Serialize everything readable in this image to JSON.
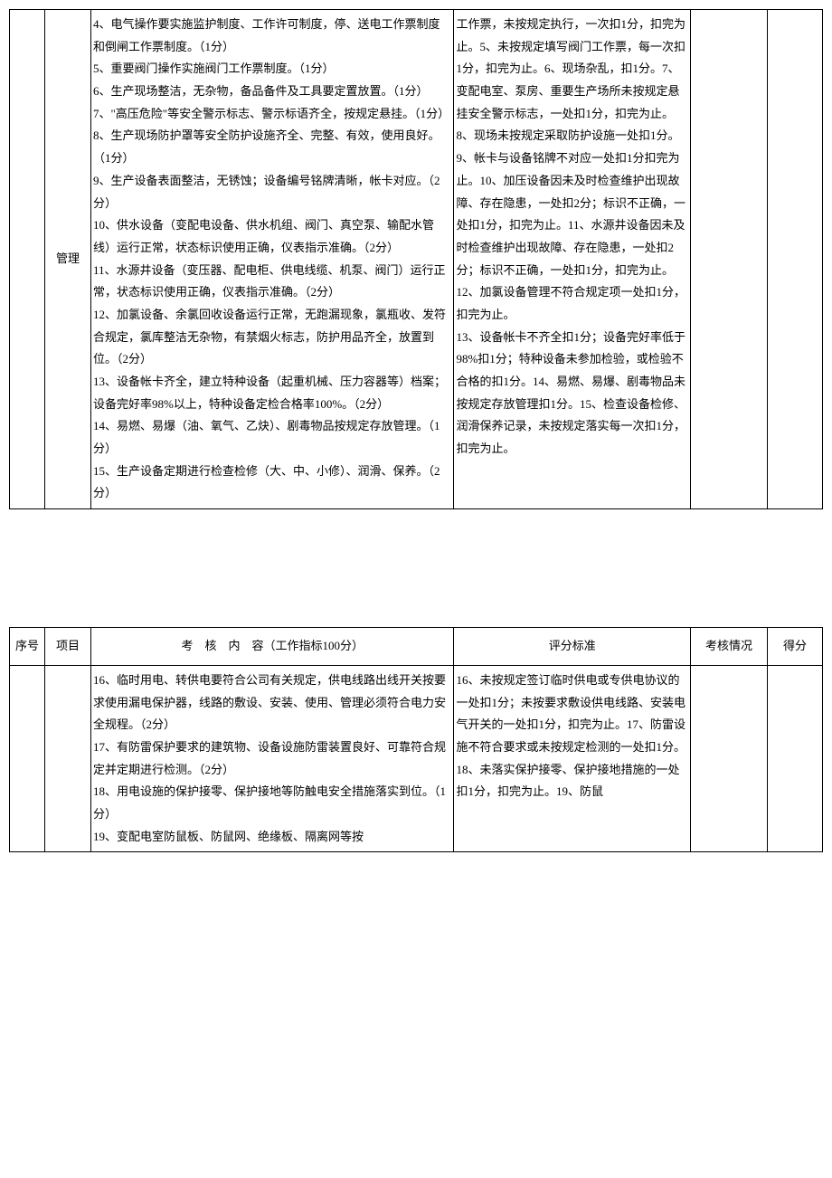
{
  "table1": {
    "row": {
      "project": "管理",
      "content": "4、电气操作要实施监护制度、工作许可制度，停、送电工作票制度和倒闸工作票制度。（1分）\n5、重要阀门操作实施阀门工作票制度。（1分）\n6、生产现场整洁，无杂物，备品备件及工具要定置放置。（1分）\n7、\"高压危险\"等安全警示标志、警示标语齐全，按规定悬挂。（1分）\n8、生产现场防护罩等安全防护设施齐全、完整、有效，使用良好。（1分）\n9、生产设备表面整洁，无锈蚀；设备编号铭牌清晰，帐卡对应。（2分）\n10、供水设备（变配电设备、供水机组、阀门、真空泵、输配水管线）运行正常，状态标识使用正确，仪表指示准确。（2分）\n11、水源井设备（变压器、配电柜、供电线缆、机泵、阀门）运行正常，状态标识使用正确，仪表指示准确。（2分）\n12、加氯设备、余氯回收设备运行正常，无跑漏现象，氯瓶收、发符合规定，氯库整洁无杂物，有禁烟火标志，防护用品齐全，放置到位。（2分）\n13、设备帐卡齐全，建立特种设备（起重机械、压力容器等）档案；设备完好率98%以上，特种设备定检合格率100%。（2分）\n14、易燃、易爆（油、氧气、乙炔）、剧毒物品按规定存放管理。（1分）\n15、生产设备定期进行检查检修（大、中、小修）、润滑、保养。（2分）",
      "criteria": "工作票，未按规定执行，一次扣1分，扣完为止。5、未按规定填写阀门工作票，每一次扣1分，扣完为止。6、现场杂乱，扣1分。7、变配电室、泵房、重要生产场所未按规定悬挂安全警示标志，一处扣1分，扣完为止。8、现场未按规定采取防护设施一处扣1分。9、帐卡与设备铭牌不对应一处扣1分扣完为止。10、加压设备因未及时检查维护出现故障、存在隐患，一处扣2分；标识不正确，一处扣1分，扣完为止。11、水源井设备因未及时检查维护出现故障、存在隐患，一处扣2分；标识不正确，一处扣1分，扣完为止。12、加氯设备管理不符合规定项一处扣1分，扣完为止。\n13、设备帐卡不齐全扣1分；设备完好率低于98%扣1分；特种设备未参加检验，或检验不合格的扣1分。14、易燃、易爆、剧毒物品未按规定存放管理扣1分。15、检查设备检修、润滑保养记录，未按规定落实每一次扣1分，扣完为止。"
    }
  },
  "table2": {
    "headers": {
      "seq": "序号",
      "project": "项目",
      "content_prefix": "考　核　内　容",
      "content_suffix": "（工作指标100分）",
      "criteria": "评分标准",
      "status": "考核情况",
      "score": "得分"
    },
    "row": {
      "content": "16、临时用电、转供电要符合公司有关规定，供电线路出线开关按要求使用漏电保护器，线路的敷设、安装、使用、管理必须符合电力安全规程。（2分）\n17、有防雷保护要求的建筑物、设备设施防雷装置良好、可靠符合规定并定期进行检测。（2分）\n18、用电设施的保护接零、保护接地等防触电安全措施落实到位。（1分）\n19、变配电室防鼠板、防鼠网、绝缘板、隔离网等按",
      "criteria": "16、未按规定签订临时供电或专供电协议的一处扣1分；未按要求敷设供电线路、安装电气开关的一处扣1分，扣完为止。17、防雷设施不符合要求或未按规定检测的一处扣1分。18、未落实保护接零、保护接地措施的一处扣1分，扣完为止。19、防鼠"
    }
  }
}
